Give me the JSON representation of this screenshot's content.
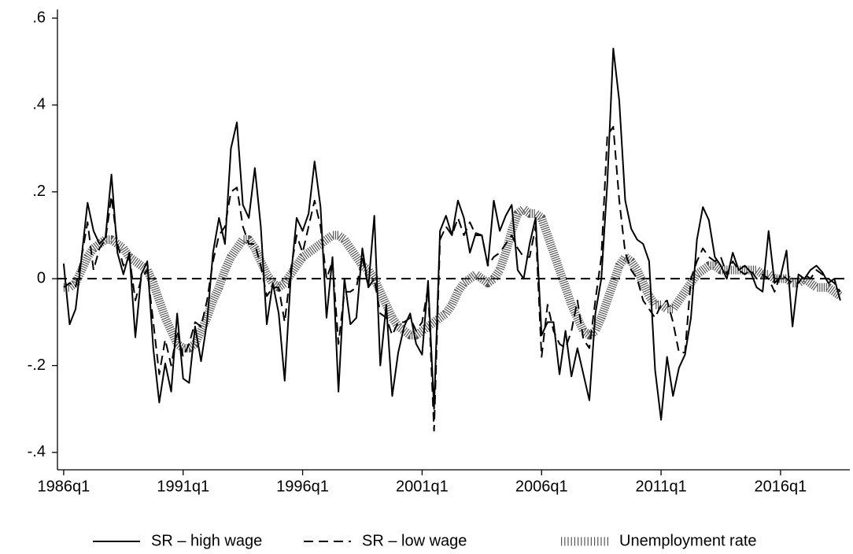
{
  "chart_data": {
    "type": "line",
    "x": [
      1986,
      1986.25,
      1986.5,
      1986.75,
      1987,
      1987.25,
      1987.5,
      1987.75,
      1988,
      1988.25,
      1988.5,
      1988.75,
      1989,
      1989.25,
      1989.5,
      1989.75,
      1990,
      1990.25,
      1990.5,
      1990.75,
      1991,
      1991.25,
      1991.5,
      1991.75,
      1992,
      1992.25,
      1992.5,
      1992.75,
      1993,
      1993.25,
      1993.5,
      1993.75,
      1994,
      1994.25,
      1994.5,
      1994.75,
      1995,
      1995.25,
      1995.5,
      1995.75,
      1996,
      1996.25,
      1996.5,
      1996.75,
      1997,
      1997.25,
      1997.5,
      1997.75,
      1998,
      1998.25,
      1998.5,
      1998.75,
      1999,
      1999.25,
      1999.5,
      1999.75,
      2000,
      2000.25,
      2000.5,
      2000.75,
      2001,
      2001.25,
      2001.5,
      2001.75,
      2002,
      2002.25,
      2002.5,
      2002.75,
      2003,
      2003.25,
      2003.5,
      2003.75,
      2004,
      2004.25,
      2004.5,
      2004.75,
      2005,
      2005.25,
      2005.5,
      2005.75,
      2006,
      2006.25,
      2006.5,
      2006.75,
      2007,
      2007.25,
      2007.5,
      2007.75,
      2008,
      2008.25,
      2008.5,
      2008.75,
      2009,
      2009.25,
      2009.5,
      2009.75,
      2010,
      2010.25,
      2010.5,
      2010.75,
      2011,
      2011.25,
      2011.5,
      2011.75,
      2012,
      2012.25,
      2012.5,
      2012.75,
      2013,
      2013.25,
      2013.5,
      2013.75,
      2014,
      2014.25,
      2014.5,
      2014.75,
      2015,
      2015.25,
      2015.5,
      2015.75,
      2016,
      2016.25,
      2016.5,
      2016.75,
      2017,
      2017.25,
      2017.5,
      2017.75,
      2018,
      2018.25,
      2018.5
    ],
    "series": [
      {
        "name": "SR – high wage",
        "color": "#000000",
        "style": "solid",
        "values": [
          0.035,
          -0.105,
          -0.07,
          0.05,
          0.175,
          0.11,
          0.08,
          0.095,
          0.24,
          0.06,
          0.01,
          0.06,
          -0.135,
          0.01,
          0.04,
          -0.16,
          -0.285,
          -0.195,
          -0.26,
          -0.08,
          -0.23,
          -0.24,
          -0.11,
          -0.19,
          -0.1,
          0.06,
          0.14,
          0.08,
          0.3,
          0.36,
          0.17,
          0.14,
          0.255,
          0.12,
          -0.105,
          -0.01,
          -0.08,
          -0.235,
          0.0,
          0.14,
          0.11,
          0.15,
          0.27,
          0.165,
          -0.09,
          0.05,
          -0.26,
          0.0,
          -0.105,
          -0.09,
          0.07,
          -0.02,
          0.145,
          -0.2,
          -0.06,
          -0.27,
          -0.17,
          -0.11,
          -0.08,
          -0.15,
          -0.175,
          -0.005,
          -0.3,
          0.11,
          0.145,
          0.1,
          0.18,
          0.14,
          0.06,
          0.105,
          0.1,
          0.03,
          0.18,
          0.11,
          0.145,
          0.17,
          0.02,
          0.0,
          0.08,
          0.14,
          -0.13,
          -0.1,
          -0.1,
          -0.22,
          -0.12,
          -0.225,
          -0.16,
          -0.22,
          -0.28,
          -0.08,
          0.0,
          0.22,
          0.53,
          0.41,
          0.18,
          0.115,
          0.09,
          0.08,
          0.04,
          -0.21,
          -0.325,
          -0.18,
          -0.27,
          -0.205,
          -0.175,
          -0.09,
          0.09,
          0.165,
          0.135,
          0.05,
          0.03,
          0.0,
          0.06,
          0.02,
          0.03,
          0.015,
          -0.02,
          -0.03,
          0.11,
          -0.01,
          0.005,
          0.065,
          -0.11,
          0.01,
          0.0,
          0.02,
          0.03,
          0.015,
          -0.01,
          0.0,
          -0.05
        ]
      },
      {
        "name": "SR – low wage",
        "color": "#000000",
        "style": "dashed",
        "values": [
          -0.02,
          -0.01,
          -0.02,
          0.05,
          0.13,
          0.02,
          0.07,
          0.09,
          0.19,
          0.08,
          0.03,
          0.05,
          -0.05,
          0.0,
          0.02,
          -0.1,
          -0.22,
          -0.14,
          -0.2,
          -0.12,
          -0.18,
          -0.15,
          -0.1,
          -0.11,
          -0.05,
          0.04,
          0.1,
          0.12,
          0.2,
          0.21,
          0.12,
          0.08,
          0.08,
          0.03,
          -0.04,
          -0.02,
          -0.02,
          -0.1,
          0.02,
          0.1,
          0.06,
          0.12,
          0.18,
          0.12,
          0.0,
          0.04,
          -0.15,
          -0.03,
          -0.03,
          -0.02,
          0.05,
          -0.02,
          0.0,
          -0.08,
          -0.09,
          -0.13,
          -0.1,
          -0.1,
          -0.09,
          -0.12,
          -0.1,
          -0.02,
          -0.35,
          0.09,
          0.12,
          0.1,
          0.14,
          0.1,
          0.13,
          0.1,
          0.1,
          0.03,
          0.05,
          0.06,
          0.08,
          0.1,
          0.07,
          0.05,
          0.05,
          0.12,
          -0.18,
          -0.06,
          -0.12,
          -0.15,
          -0.16,
          -0.12,
          -0.05,
          -0.14,
          -0.16,
          -0.05,
          0.05,
          0.33,
          0.35,
          0.18,
          0.06,
          0.02,
          0.0,
          -0.05,
          -0.07,
          -0.09,
          -0.06,
          -0.05,
          -0.1,
          -0.17,
          -0.17,
          0.0,
          0.04,
          0.07,
          0.05,
          0.04,
          0.05,
          0.01,
          0.04,
          0.02,
          0.01,
          0.02,
          0.0,
          0.01,
          0.0,
          -0.03,
          0.01,
          0.0,
          -0.01,
          -0.01,
          0.01,
          0.0,
          0.02,
          0.01,
          0.0,
          -0.01,
          -0.03
        ]
      },
      {
        "name": "Unemployment rate",
        "color": "#555555",
        "style": "hatched",
        "values": [
          -0.02,
          -0.02,
          -0.01,
          0.02,
          0.05,
          0.07,
          0.08,
          0.09,
          0.09,
          0.08,
          0.07,
          0.05,
          0.04,
          0.03,
          0.02,
          -0.01,
          -0.05,
          -0.09,
          -0.12,
          -0.15,
          -0.16,
          -0.16,
          -0.15,
          -0.12,
          -0.09,
          -0.05,
          -0.02,
          0.02,
          0.05,
          0.07,
          0.09,
          0.09,
          0.07,
          0.04,
          0.01,
          -0.01,
          -0.02,
          -0.01,
          0.01,
          0.03,
          0.05,
          0.06,
          0.07,
          0.08,
          0.09,
          0.1,
          0.1,
          0.09,
          0.07,
          0.05,
          0.03,
          0.02,
          0.0,
          -0.03,
          -0.06,
          -0.09,
          -0.11,
          -0.12,
          -0.13,
          -0.13,
          -0.12,
          -0.11,
          -0.1,
          -0.09,
          -0.08,
          -0.06,
          -0.03,
          -0.01,
          0.0,
          0.01,
          0.0,
          -0.01,
          0.0,
          0.02,
          0.06,
          0.11,
          0.15,
          0.16,
          0.15,
          0.15,
          0.14,
          0.1,
          0.06,
          0.02,
          -0.02,
          -0.06,
          -0.09,
          -0.12,
          -0.13,
          -0.12,
          -0.09,
          -0.05,
          -0.01,
          0.03,
          0.05,
          0.04,
          0.02,
          -0.01,
          -0.04,
          -0.06,
          -0.06,
          -0.07,
          -0.07,
          -0.05,
          -0.03,
          -0.01,
          0.01,
          0.02,
          0.03,
          0.03,
          0.02,
          0.02,
          0.02,
          0.02,
          0.02,
          0.02,
          0.02,
          0.01,
          0.01,
          0.0,
          0.0,
          0.0,
          -0.01,
          -0.01,
          0.0,
          -0.01,
          -0.02,
          -0.02,
          -0.02,
          -0.03,
          -0.04
        ]
      }
    ],
    "xlim": [
      1985.74,
      2018.9
    ],
    "xticks": [
      {
        "value": 1986,
        "label": "1986q1"
      },
      {
        "value": 1991,
        "label": "1991q1"
      },
      {
        "value": 1996,
        "label": "1996q1"
      },
      {
        "value": 2001,
        "label": "2001q1"
      },
      {
        "value": 2006,
        "label": "2006q1"
      },
      {
        "value": 2011,
        "label": "2011q1"
      },
      {
        "value": 2016,
        "label": "2016q1"
      }
    ],
    "ylim": [
      -0.44,
      0.62
    ],
    "yticks": [
      {
        "value": 0.6,
        "label": ".6"
      },
      {
        "value": 0.4,
        "label": ".4"
      },
      {
        "value": 0.2,
        "label": ".2"
      },
      0,
      {
        "value": -0.2,
        "label": "-.2"
      },
      {
        "value": -0.4,
        "label": "-.4"
      }
    ],
    "hline": 0,
    "grid": false
  }
}
